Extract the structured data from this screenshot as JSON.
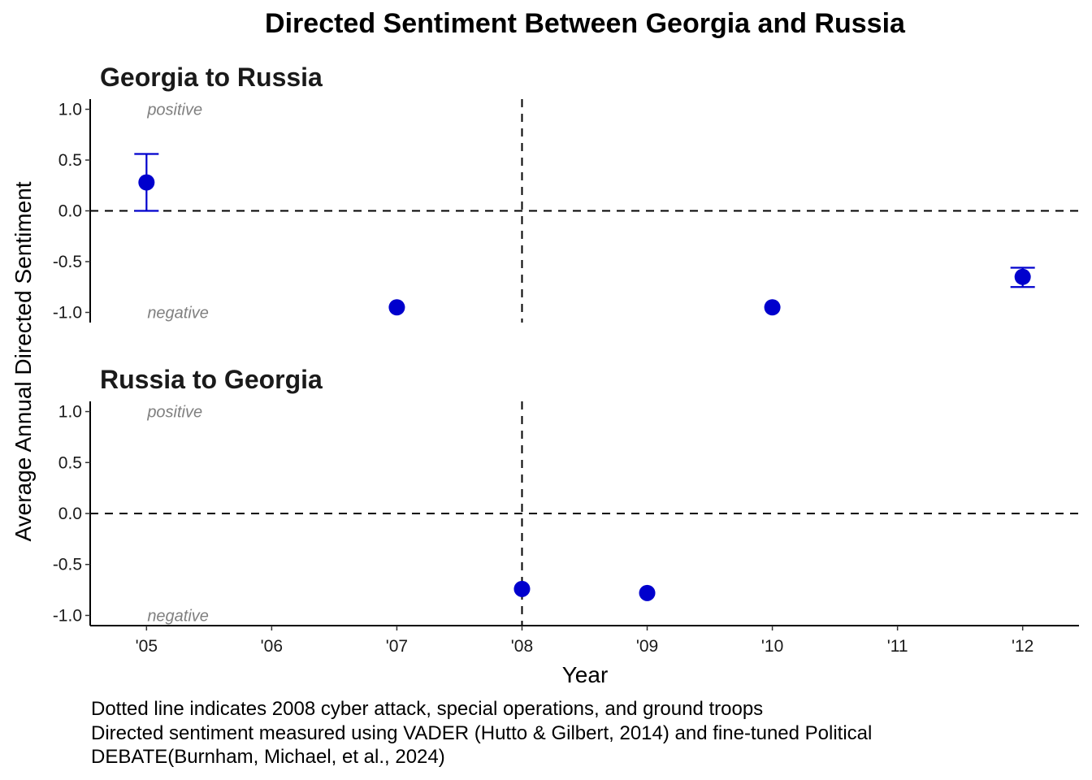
{
  "chart_data": {
    "type": "scatter",
    "title": "Directed Sentiment Between Georgia and Russia",
    "xlabel": "Year",
    "ylabel": "Average Annual Directed Sentiment",
    "x_ticks": [
      "'05",
      "'06",
      "'07",
      "'08",
      "'09",
      "'10",
      "'11",
      "'12"
    ],
    "y_ticks": [
      "1.0",
      "0.5",
      "0.0",
      "-0.5",
      "-1.0"
    ],
    "xlim": [
      2004.55,
      2012.45
    ],
    "ylim": [
      -1.1,
      1.1
    ],
    "reference_lines": {
      "hline_y": 0.0,
      "vline_x": 2008
    },
    "point_color": "#0000CD",
    "annotations": {
      "positive": "positive",
      "negative": "negative"
    },
    "panels": [
      {
        "title": "Georgia to Russia",
        "points": [
          {
            "x": 2005,
            "y": 0.28,
            "ymin": 0.0,
            "ymax": 0.56
          },
          {
            "x": 2007,
            "y": -0.95
          },
          {
            "x": 2010,
            "y": -0.95
          },
          {
            "x": 2012,
            "y": -0.65,
            "ymin": -0.75,
            "ymax": -0.56
          }
        ]
      },
      {
        "title": "Russia to Georgia",
        "points": [
          {
            "x": 2008,
            "y": -0.74
          },
          {
            "x": 2009,
            "y": -0.78
          }
        ]
      }
    ],
    "caption": [
      "Dotted line indicates 2008 cyber attack, special operations, and ground troops",
      "Directed sentiment measured using VADER (Hutto & Gilbert, 2014) and fine-tuned Political",
      "DEBATE(Burnham, Michael, et al., 2024)"
    ]
  }
}
